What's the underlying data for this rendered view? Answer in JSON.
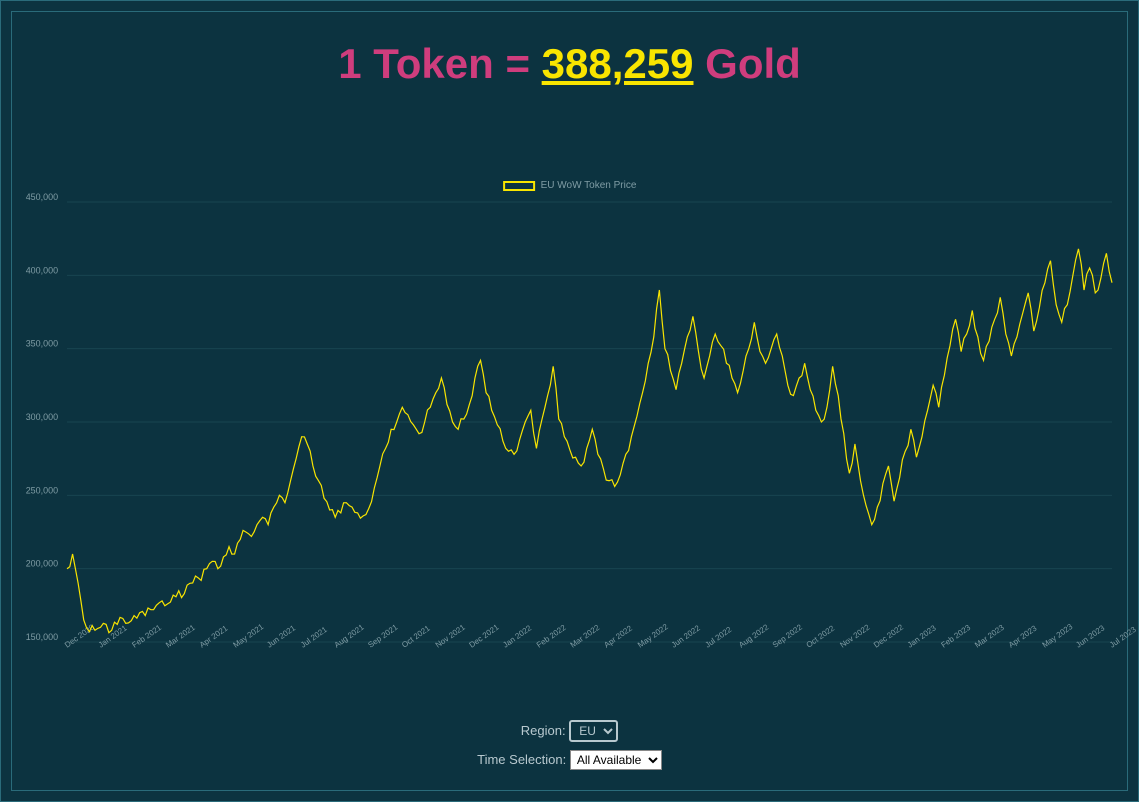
{
  "title": {
    "prefix": "1 Token = ",
    "amount": "388,259",
    "suffix": " Gold",
    "color_text": "#cf3d7d",
    "color_amount": "#f9e500",
    "fontsize": 42
  },
  "legend": {
    "label": "EU WoW Token Price",
    "swatch_color": "#f9e500"
  },
  "controls": {
    "region_label": "Region:",
    "region_value": "EU",
    "region_options": [
      "EU"
    ],
    "time_label": "Time Selection:",
    "time_value": "All Available",
    "time_options": [
      "All Available"
    ]
  },
  "chart": {
    "type": "line",
    "background_color": "#0c3340",
    "grid_color": "#184451",
    "line_color": "#f9e500",
    "line_width": 1.2,
    "ylim": [
      150000,
      450000
    ],
    "ytick_step": 50000,
    "yticks": [
      "150,000",
      "200,000",
      "250,000",
      "300,000",
      "350,000",
      "400,000",
      "450,000"
    ],
    "xticks": [
      "Dec 2020",
      "Jan 2021",
      "Feb 2021",
      "Mar 2021",
      "Apr 2021",
      "May 2021",
      "Jun 2021",
      "Jul 2021",
      "Aug 2021",
      "Sep 2021",
      "Oct 2021",
      "Nov 2021",
      "Dec 2021",
      "Jan 2022",
      "Feb 2022",
      "Mar 2022",
      "Apr 2022",
      "May 2022",
      "Jun 2022",
      "Jul 2022",
      "Aug 2022",
      "Sep 2022",
      "Oct 2022",
      "Nov 2022",
      "Dec 2022",
      "Jan 2023",
      "Feb 2023",
      "Mar 2023",
      "Apr 2023",
      "May 2023",
      "Jun 2023",
      "Jul 2023"
    ],
    "values": [
      200000,
      210000,
      190000,
      165000,
      157000,
      158000,
      160000,
      162000,
      158000,
      162000,
      166000,
      163000,
      168000,
      170000,
      168000,
      172000,
      175000,
      178000,
      176000,
      182000,
      185000,
      183000,
      190000,
      195000,
      192000,
      200000,
      205000,
      200000,
      208000,
      215000,
      210000,
      220000,
      225000,
      222000,
      230000,
      235000,
      230000,
      242000,
      250000,
      245000,
      260000,
      275000,
      290000,
      285000,
      270000,
      260000,
      248000,
      240000,
      235000,
      238000,
      245000,
      242000,
      238000,
      236000,
      241000,
      255000,
      270000,
      282000,
      295000,
      300000,
      310000,
      305000,
      298000,
      292000,
      300000,
      310000,
      320000,
      330000,
      312000,
      300000,
      295000,
      302000,
      312000,
      330000,
      342000,
      320000,
      308000,
      298000,
      287000,
      280000,
      278000,
      288000,
      300000,
      308000,
      282000,
      302000,
      318000,
      338000,
      302000,
      290000,
      281000,
      276000,
      270000,
      282000,
      295000,
      278000,
      268000,
      260000,
      256000,
      264000,
      278000,
      290000,
      304000,
      320000,
      340000,
      358000,
      390000,
      350000,
      335000,
      322000,
      340000,
      358000,
      372000,
      348000,
      330000,
      345000,
      360000,
      352000,
      340000,
      330000,
      320000,
      335000,
      350000,
      368000,
      348000,
      340000,
      350000,
      360000,
      345000,
      325000,
      318000,
      330000,
      340000,
      322000,
      308000,
      300000,
      310000,
      338000,
      318000,
      292000,
      265000,
      285000,
      260000,
      243000,
      230000,
      242000,
      258000,
      270000,
      246000,
      262000,
      280000,
      295000,
      276000,
      290000,
      308000,
      325000,
      310000,
      332000,
      352000,
      370000,
      348000,
      360000,
      376000,
      358000,
      342000,
      355000,
      370000,
      385000,
      360000,
      345000,
      358000,
      374000,
      388000,
      362000,
      378000,
      395000,
      410000,
      380000,
      368000,
      380000,
      400000,
      418000,
      390000,
      405000,
      388000,
      398000,
      415000,
      395000
    ]
  },
  "colors": {
    "page_bg": "#0c3340",
    "border": "#2a6b7a",
    "text_muted": "#7f9ca4"
  }
}
